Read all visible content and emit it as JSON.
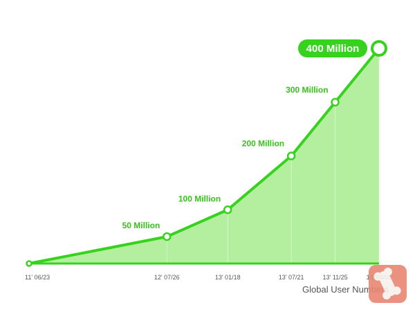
{
  "chart_data": {
    "type": "area",
    "title": "Global User Numbers",
    "categories": [
      "11' 06/23",
      "12' 07/26",
      "13' 01/18",
      "13' 07/21",
      "13' 11/25",
      "14' 04/01"
    ],
    "series": [
      {
        "values": [
          0,
          50,
          100,
          200,
          300,
          400
        ],
        "point_labels": [
          "",
          "50 Million",
          "100 Million",
          "200 Million",
          "300 Million",
          "400 Million"
        ]
      }
    ],
    "ylim": [
      0,
      400
    ],
    "grid": false,
    "highlight_last_point": true,
    "colors": {
      "line": "#36d21e",
      "fill": "#b3ef9e",
      "label": "#36c21a",
      "axis": "#555555"
    }
  }
}
